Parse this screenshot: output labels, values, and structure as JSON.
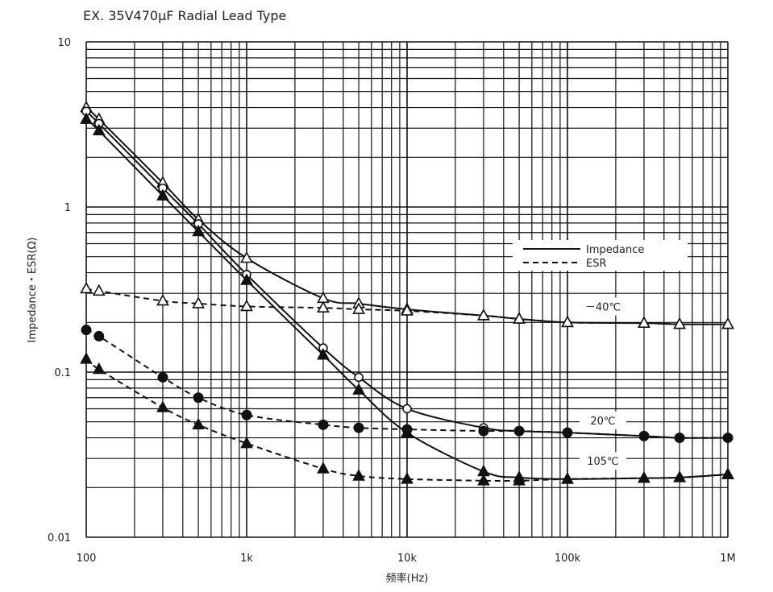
{
  "chart_data": {
    "type": "line",
    "title": "EX. 35V470μF Radial Lead Type",
    "xlabel": "频率(Hz)",
    "ylabel": "Impedance・ESR(Ω)",
    "x_scale": "log",
    "y_scale": "log",
    "xlim": [
      100,
      1000000
    ],
    "ylim": [
      0.01,
      10
    ],
    "grid": true,
    "x_ticks": [
      {
        "v": 100,
        "label": "100"
      },
      {
        "v": 1000,
        "label": "1k"
      },
      {
        "v": 10000,
        "label": "10k"
      },
      {
        "v": 100000,
        "label": "100k"
      },
      {
        "v": 1000000,
        "label": "1M"
      }
    ],
    "y_ticks": [
      {
        "v": 10,
        "label": "10"
      },
      {
        "v": 1,
        "label": "1"
      },
      {
        "v": 0.1,
        "label": "0.1"
      },
      {
        "v": 0.01,
        "label": "0.01"
      }
    ],
    "legend": {
      "placement": "right-middle",
      "entries": [
        {
          "label": "Impedance",
          "style": "solid"
        },
        {
          "label": "ESR",
          "style": "dashed"
        }
      ]
    },
    "annotations": [
      {
        "text": "－40℃",
        "near_value": [
          200000,
          0.25
        ]
      },
      {
        "text": "20℃",
        "near_value": [
          200000,
          0.051
        ]
      },
      {
        "text": "105℃",
        "near_value": [
          200000,
          0.029
        ]
      }
    ],
    "x": [
      100,
      120,
      300,
      500,
      1000,
      3000,
      5000,
      10000,
      30000,
      50000,
      100000,
      300000,
      500000,
      1000000
    ],
    "series": [
      {
        "temperature": "-40℃",
        "kind": "Impedance",
        "style": "solid",
        "marker": "open-triangle",
        "values": [
          4.0,
          3.4,
          1.4,
          0.84,
          0.49,
          0.28,
          0.26,
          0.24,
          0.22,
          0.21,
          0.2,
          0.198,
          0.195,
          0.195
        ]
      },
      {
        "temperature": "-40℃",
        "kind": "ESR",
        "style": "dashed",
        "marker": "open-triangle",
        "values": [
          0.32,
          0.31,
          0.27,
          0.26,
          0.25,
          0.245,
          0.24,
          0.235,
          0.22,
          0.21,
          0.2,
          0.198,
          0.195,
          0.195
        ]
      },
      {
        "temperature": "20℃",
        "kind": "Impedance",
        "style": "solid",
        "marker": "open-circle",
        "values": [
          3.8,
          3.2,
          1.3,
          0.79,
          0.39,
          0.14,
          0.093,
          0.06,
          0.046,
          0.044,
          0.043,
          0.041,
          0.04,
          0.04
        ]
      },
      {
        "temperature": "20℃",
        "kind": "ESR",
        "style": "dashed",
        "marker": "filled-circle",
        "values": [
          0.18,
          0.165,
          0.093,
          0.07,
          0.055,
          0.048,
          0.046,
          0.045,
          0.044,
          0.044,
          0.043,
          0.041,
          0.04,
          0.04
        ]
      },
      {
        "temperature": "105℃",
        "kind": "Impedance",
        "style": "solid",
        "marker": "filled-triangle",
        "values": [
          3.4,
          2.9,
          1.17,
          0.71,
          0.36,
          0.127,
          0.078,
          0.043,
          0.025,
          0.023,
          0.0225,
          0.0228,
          0.023,
          0.024
        ]
      },
      {
        "temperature": "105℃",
        "kind": "ESR",
        "style": "dashed",
        "marker": "filled-triangle",
        "values": [
          0.12,
          0.104,
          0.061,
          0.048,
          0.037,
          0.026,
          0.0235,
          0.0225,
          0.022,
          0.022,
          0.0225,
          0.0228,
          0.023,
          0.024
        ]
      }
    ]
  }
}
